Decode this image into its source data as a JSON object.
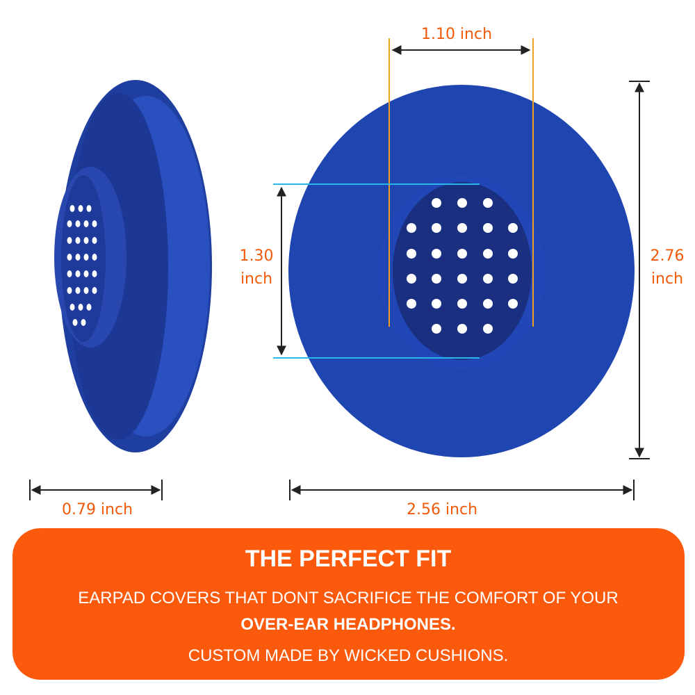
{
  "dimensions": {
    "inner_width": "1.10 inch",
    "inner_height": {
      "value": "1.30",
      "unit": "inch"
    },
    "outer_height": {
      "value": "2.76",
      "unit": "inch"
    },
    "depth": "0.79 inch",
    "outer_width": "2.56 inch"
  },
  "banner": {
    "title": "THE PERFECT FIT",
    "lines": [
      "EARPAD COVERS THAT DONT SACRIFICE THE COMFORT OF YOUR",
      "OVER-EAR HEADPHONES.",
      "CUSTOM MADE BY WICKED CUSHIONS."
    ]
  }
}
